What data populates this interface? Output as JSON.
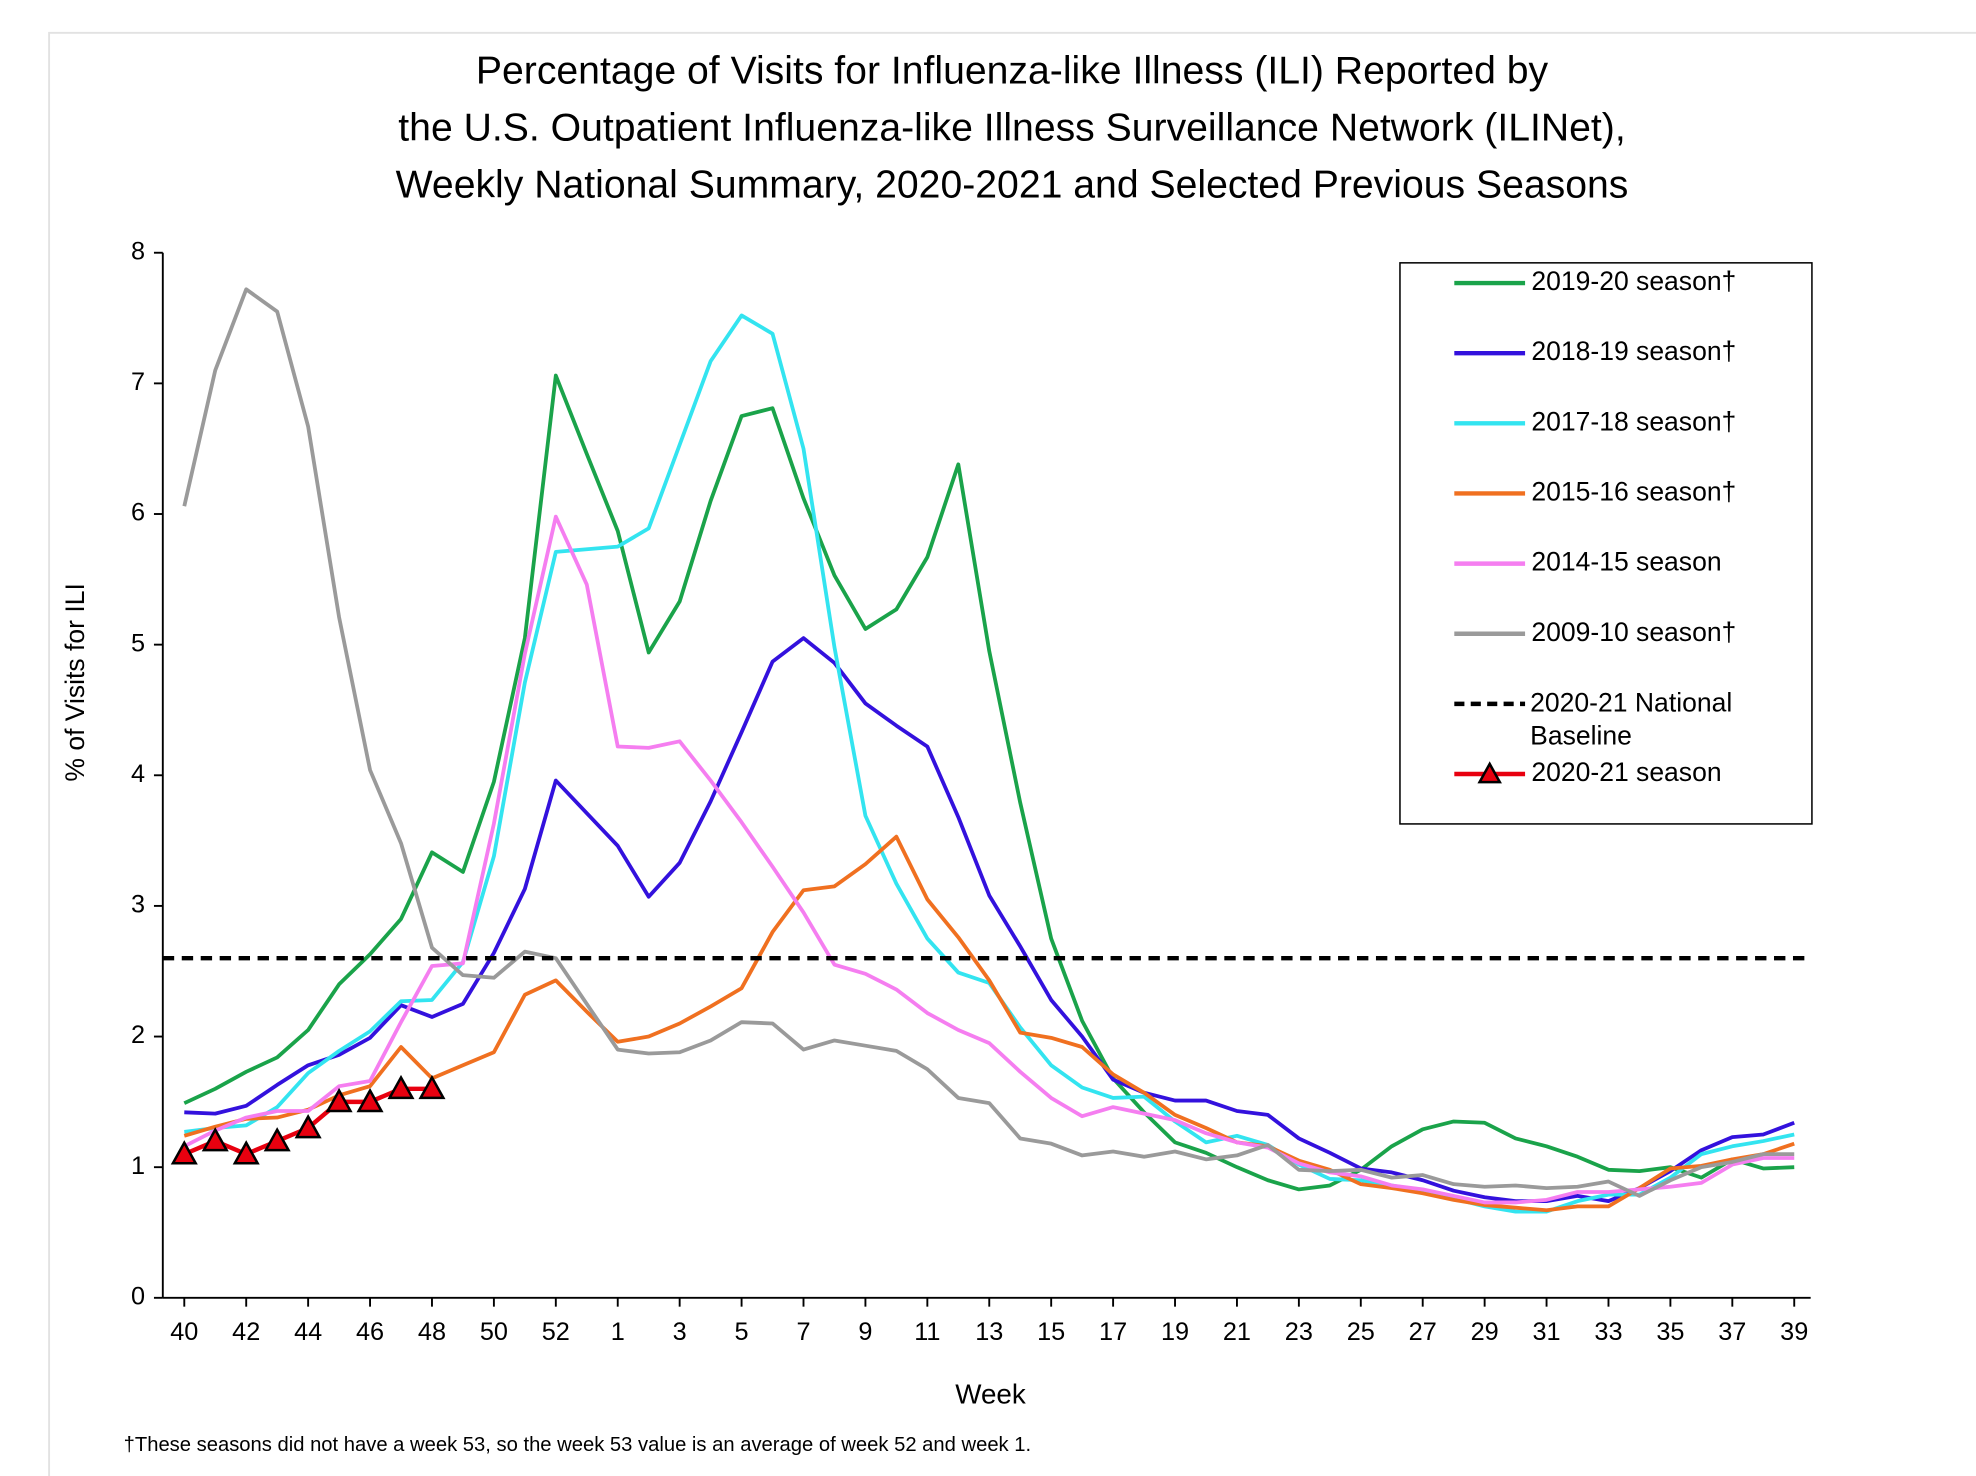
{
  "chart_data": {
    "type": "line",
    "title": [
      "Percentage of Visits for Influenza-like Illness (ILI) Reported by",
      "the U.S. Outpatient Influenza-like Illness Surveillance Network (ILINet),",
      "Weekly National Summary, 2020-2021 and Selected Previous Seasons"
    ],
    "xlabel": "Week",
    "ylabel": "% of Visits for ILI",
    "footnote": "†These seasons did not have a week 53, so the week 53 value is an average of week 52 and week 1.",
    "categories": [
      "40",
      null,
      "42",
      null,
      "44",
      null,
      "46",
      null,
      "48",
      null,
      "50",
      null,
      "52",
      null,
      "1",
      null,
      "3",
      null,
      "5",
      null,
      "7",
      null,
      "9",
      null,
      "11",
      null,
      "13",
      null,
      "15",
      null,
      "17",
      null,
      "19",
      null,
      "21",
      null,
      "23",
      null,
      "25",
      null,
      "27",
      null,
      "29",
      null,
      "31",
      null,
      "33",
      null,
      "35",
      null,
      "37",
      null,
      "39"
    ],
    "ylim": [
      0,
      8
    ],
    "yticks": [
      0,
      1,
      2,
      3,
      4,
      5,
      6,
      7,
      8
    ],
    "legend": "upper right",
    "series": [
      {
        "name": "2019-20 season†",
        "color": "#1aa34a",
        "values": [
          1.49,
          1.6,
          1.73,
          1.84,
          2.05,
          2.4,
          2.63,
          2.9,
          3.41,
          3.26,
          3.95,
          5.05,
          7.06,
          6.46,
          5.87,
          4.94,
          5.33,
          6.1,
          6.75,
          6.81,
          6.12,
          5.53,
          5.12,
          5.27,
          5.67,
          6.38,
          4.95,
          3.79,
          2.75,
          2.12,
          1.68,
          1.42,
          1.19,
          1.11,
          1.0,
          0.9,
          0.83,
          0.86,
          0.98,
          1.16,
          1.29,
          1.35,
          1.34,
          1.22,
          1.16,
          1.08,
          0.98,
          0.97,
          1.0,
          0.92,
          1.06,
          0.99,
          1.0
        ]
      },
      {
        "name": "2018-19 season†",
        "color": "#3311dd",
        "values": [
          1.42,
          1.41,
          1.47,
          1.63,
          1.78,
          1.86,
          1.99,
          2.24,
          2.15,
          2.25,
          2.64,
          3.13,
          3.96,
          3.71,
          3.46,
          3.07,
          3.33,
          3.8,
          4.33,
          4.87,
          5.05,
          4.86,
          4.55,
          4.38,
          4.22,
          3.68,
          3.08,
          2.69,
          2.28,
          2.0,
          1.67,
          1.57,
          1.51,
          1.51,
          1.43,
          1.4,
          1.22,
          1.11,
          0.99,
          0.96,
          0.9,
          0.82,
          0.77,
          0.74,
          0.74,
          0.78,
          0.74,
          0.84,
          0.97,
          1.13,
          1.23,
          1.25,
          1.34
        ]
      },
      {
        "name": "2017-18 season†",
        "color": "#33e4f0",
        "values": [
          1.27,
          1.3,
          1.32,
          1.46,
          1.72,
          1.89,
          2.04,
          2.27,
          2.28,
          2.57,
          3.38,
          4.71,
          5.71,
          5.73,
          5.75,
          5.89,
          6.53,
          7.17,
          7.52,
          7.38,
          6.5,
          4.98,
          3.69,
          3.17,
          2.75,
          2.49,
          2.41,
          2.07,
          1.78,
          1.61,
          1.53,
          1.54,
          1.35,
          1.19,
          1.24,
          1.17,
          1.02,
          0.91,
          0.9,
          0.86,
          0.82,
          0.76,
          0.7,
          0.66,
          0.66,
          0.74,
          0.79,
          0.79,
          0.92,
          1.1,
          1.16,
          1.2,
          1.25
        ]
      },
      {
        "name": "2015-16 season†",
        "color": "#f07020",
        "values": [
          1.24,
          1.31,
          1.37,
          1.38,
          1.44,
          1.55,
          1.62,
          1.92,
          1.68,
          1.78,
          1.88,
          2.32,
          2.43,
          2.19,
          1.96,
          2.0,
          2.1,
          2.23,
          2.37,
          2.8,
          3.12,
          3.15,
          3.32,
          3.53,
          3.05,
          2.76,
          2.43,
          2.03,
          1.99,
          1.92,
          1.71,
          1.57,
          1.4,
          1.3,
          1.19,
          1.16,
          1.05,
          0.98,
          0.87,
          0.84,
          0.8,
          0.75,
          0.71,
          0.69,
          0.67,
          0.7,
          0.7,
          0.84,
          0.99,
          1.01,
          1.06,
          1.1,
          1.18
        ]
      },
      {
        "name": "2014-15 season",
        "color": "#f57ef0",
        "values": [
          1.16,
          1.28,
          1.38,
          1.43,
          1.43,
          1.62,
          1.66,
          2.11,
          2.54,
          2.56,
          3.63,
          4.93,
          5.98,
          5.46,
          4.22,
          4.21,
          4.26,
          3.96,
          3.64,
          3.3,
          2.95,
          2.55,
          2.48,
          2.36,
          2.18,
          2.05,
          1.95,
          1.73,
          1.53,
          1.39,
          1.46,
          1.41,
          1.36,
          1.26,
          1.19,
          1.15,
          1.03,
          0.96,
          0.93,
          0.86,
          0.83,
          0.78,
          0.73,
          0.73,
          0.75,
          0.81,
          0.81,
          0.83,
          0.85,
          0.88,
          1.02,
          1.07,
          1.07
        ]
      },
      {
        "name": "2009-10 season†",
        "color": "#9a9a9a",
        "values": [
          6.06,
          7.1,
          7.72,
          7.55,
          6.67,
          5.21,
          4.04,
          3.48,
          2.68,
          2.47,
          2.45,
          2.65,
          2.6,
          2.25,
          1.9,
          1.87,
          1.88,
          1.97,
          2.11,
          2.1,
          1.9,
          1.97,
          1.93,
          1.89,
          1.75,
          1.53,
          1.49,
          1.22,
          1.18,
          1.09,
          1.12,
          1.08,
          1.12,
          1.06,
          1.09,
          1.17,
          0.98,
          0.97,
          0.98,
          0.92,
          0.94,
          0.87,
          0.85,
          0.86,
          0.84,
          0.85,
          0.89,
          0.78,
          0.9,
          1.0,
          1.04,
          1.1,
          1.1
        ]
      },
      {
        "name": "2020-21 National Baseline",
        "color": "#000000",
        "dash": true,
        "value": 2.6
      },
      {
        "name": "2020-21 season",
        "color": "#e8000f",
        "marker": "triangle",
        "values": [
          1.1,
          1.2,
          1.1,
          1.2,
          1.3,
          1.5,
          1.5,
          1.6,
          1.6,
          null,
          null,
          null,
          null,
          null,
          null,
          null,
          null,
          null,
          null,
          null,
          null,
          null,
          null,
          null,
          null,
          null,
          null,
          null,
          null,
          null,
          null,
          null,
          null,
          null,
          null,
          null,
          null,
          null,
          null,
          null,
          null,
          null,
          null,
          null,
          null,
          null,
          null,
          null,
          null,
          null,
          null,
          null,
          null
        ]
      }
    ]
  }
}
